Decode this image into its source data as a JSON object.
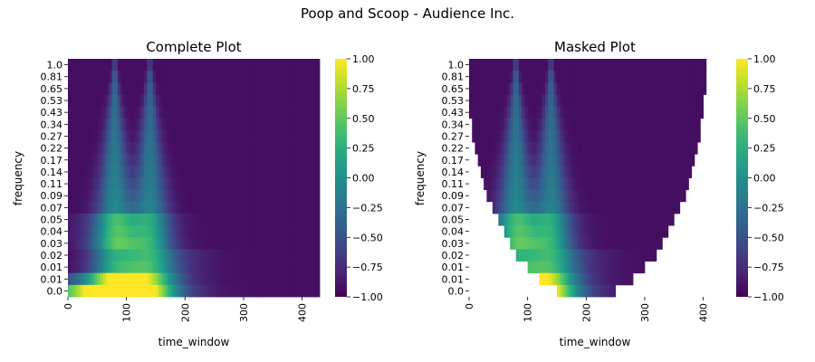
{
  "figure_title": "Poop and Scoop - Audience Inc.",
  "chart_data": [
    {
      "type": "heatmap",
      "title": "Complete Plot",
      "xlabel": "time_window",
      "ylabel": "frequency",
      "masked": false,
      "x_range": [
        0,
        430
      ],
      "x_ticks": [
        "0",
        "100",
        "200",
        "300",
        "400"
      ],
      "y_ticks": [
        "1.0",
        "0.81",
        "0.65",
        "0.53",
        "0.43",
        "0.34",
        "0.27",
        "0.22",
        "0.17",
        "0.14",
        "0.11",
        "0.09",
        "0.07",
        "0.05",
        "0.04",
        "0.03",
        "0.02",
        "0.01",
        "0.01",
        "0.0"
      ],
      "value_range": [
        -1.0,
        1.0
      ],
      "colormap": "viridis",
      "colorbar_ticks": [
        "1.00",
        "0.75",
        "0.50",
        "0.25",
        "0.00",
        "−0.25",
        "−0.50",
        "−0.75",
        "−1.00"
      ]
    },
    {
      "type": "heatmap",
      "title": "Masked Plot",
      "xlabel": "time_window",
      "ylabel": "frequency",
      "masked": true,
      "x_range": [
        0,
        430
      ],
      "x_ticks": [
        "0",
        "100",
        "200",
        "300",
        "400"
      ],
      "y_ticks": [
        "1.0",
        "0.81",
        "0.65",
        "0.53",
        "0.43",
        "0.34",
        "0.27",
        "0.22",
        "0.17",
        "0.14",
        "0.11",
        "0.09",
        "0.07",
        "0.05",
        "0.04",
        "0.03",
        "0.02",
        "0.01",
        "0.01",
        "0.0"
      ],
      "value_range": [
        -1.0,
        1.0
      ],
      "colormap": "viridis",
      "colorbar_ticks": [
        "1.00",
        "0.75",
        "0.50",
        "0.25",
        "0.00",
        "−0.25",
        "−0.50",
        "−0.75",
        "−1.00"
      ]
    }
  ]
}
